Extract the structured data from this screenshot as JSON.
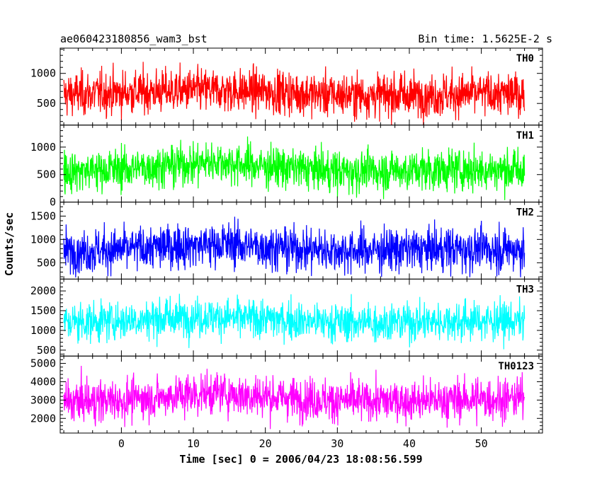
{
  "chart_data": {
    "type": "line",
    "title": "ae060423180856_wam3_bst",
    "subtitle": "Bin time: 1.5625E-2 s",
    "xlabel": "Time [sec] 0 = 2006/04/23 18:08:56.599",
    "ylabel": "Counts/sec",
    "xlim": [
      -8.5,
      58.5
    ],
    "data_xrange": [
      -8.0,
      56.0
    ],
    "x_ticks": [
      0,
      10,
      20,
      30,
      40,
      50
    ],
    "grid": false,
    "series": [
      {
        "name": "TH0",
        "color": "#ff0000",
        "ylim": [
          140,
          1420
        ],
        "y_ticks": [
          500,
          1000
        ],
        "mean": 650,
        "noise_min": 80,
        "noise_max": 1420,
        "x": [
          -8,
          0,
          10,
          20,
          30,
          40,
          50,
          56
        ],
        "y": [
          650,
          680,
          720,
          700,
          640,
          640,
          660,
          650
        ]
      },
      {
        "name": "TH1",
        "color": "#00ff00",
        "ylim": [
          0,
          1400
        ],
        "y_ticks": [
          0,
          500,
          1000
        ],
        "mean": 600,
        "noise_min": 20,
        "noise_max": 1400,
        "x": [
          -8,
          0,
          10,
          13,
          20,
          30,
          40,
          50,
          56
        ],
        "y": [
          560,
          600,
          700,
          740,
          650,
          560,
          580,
          590,
          580
        ]
      },
      {
        "name": "TH2",
        "color": "#0000ff",
        "ylim": [
          150,
          1800
        ],
        "y_ticks": [
          500,
          1000,
          1500
        ],
        "mean": 800,
        "noise_min": 150,
        "noise_max": 1800,
        "x": [
          -8,
          0,
          10,
          15,
          20,
          30,
          40,
          50,
          56
        ],
        "y": [
          750,
          780,
          880,
          900,
          840,
          760,
          780,
          800,
          780
        ]
      },
      {
        "name": "TH3",
        "color": "#00ffff",
        "ylim": [
          350,
          2300
        ],
        "y_ticks": [
          500,
          1000,
          1500,
          2000
        ],
        "mean": 1250,
        "noise_min": 380,
        "noise_max": 2300,
        "x": [
          -8,
          0,
          10,
          20,
          30,
          40,
          50,
          56
        ],
        "y": [
          1200,
          1250,
          1350,
          1300,
          1200,
          1220,
          1250,
          1230
        ]
      },
      {
        "name": "TH0123",
        "color": "#ff00ff",
        "ylim": [
          1200,
          5400
        ],
        "y_ticks": [
          2000,
          3000,
          4000,
          5000
        ],
        "mean": 3000,
        "noise_min": 1300,
        "noise_max": 5400,
        "x": [
          -8,
          0,
          10,
          13,
          20,
          30,
          40,
          50,
          56
        ],
        "y": [
          2900,
          3000,
          3300,
          3400,
          3200,
          2950,
          2950,
          3050,
          3100
        ]
      }
    ]
  }
}
